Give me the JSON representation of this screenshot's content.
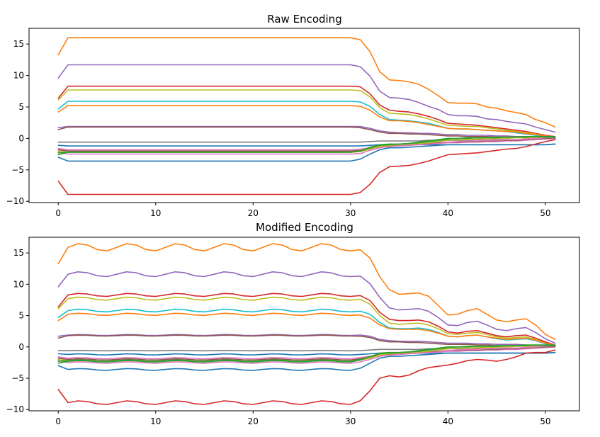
{
  "palette": [
    "#1f77b4",
    "#ff7f0e",
    "#2ca02c",
    "#d62728",
    "#9467bd",
    "#8c564b",
    "#e377c2",
    "#7f7f7f",
    "#bcbd22",
    "#17becf"
  ],
  "chart_data": [
    {
      "type": "line",
      "title": "Raw Encoding",
      "xlabel": "",
      "ylabel": "",
      "xlim": [
        -3,
        53.5
      ],
      "ylim": [
        -10.2,
        17.5
      ],
      "xticks": [
        0,
        10,
        20,
        30,
        40,
        50
      ],
      "yticks": [
        -10,
        -5,
        0,
        5,
        10,
        15
      ],
      "grid": false,
      "series": [
        {
          "color": "#ff7f0e",
          "start": 13.3,
          "plateau": 16.0,
          "transition": [
            15.7,
            13.8,
            10.6,
            9.3,
            9.2,
            9.0,
            8.6,
            7.8,
            6.8,
            5.7,
            5.6,
            5.6,
            5.5,
            5.0,
            4.8,
            4.4,
            4.1,
            3.8,
            3.0,
            2.5,
            1.8
          ]
        },
        {
          "color": "#9467bd",
          "start": 9.6,
          "plateau": 11.7,
          "transition": [
            11.4,
            9.9,
            7.5,
            6.5,
            6.4,
            6.2,
            5.7,
            5.1,
            4.6,
            3.8,
            3.6,
            3.6,
            3.5,
            3.1,
            3.0,
            2.7,
            2.5,
            2.3,
            1.8,
            1.4,
            1.0
          ]
        },
        {
          "color": "#d62728",
          "start": 6.4,
          "plateau": 8.3,
          "transition": [
            8.2,
            7.1,
            5.3,
            4.5,
            4.3,
            4.2,
            3.9,
            3.5,
            3.0,
            2.4,
            2.3,
            2.2,
            2.1,
            1.9,
            1.7,
            1.5,
            1.3,
            1.1,
            0.8,
            0.5,
            0.3
          ]
        },
        {
          "color": "#bcbd22",
          "start": 6.1,
          "plateau": 7.7,
          "transition": [
            7.6,
            6.6,
            4.9,
            4.0,
            3.9,
            3.8,
            3.5,
            3.1,
            2.6,
            2.1,
            2.0,
            1.9,
            1.9,
            1.7,
            1.5,
            1.3,
            1.1,
            0.9,
            0.7,
            0.4,
            0.2
          ]
        },
        {
          "color": "#17becf",
          "start": 4.7,
          "plateau": 5.9,
          "transition": [
            5.8,
            5.1,
            3.8,
            3.0,
            2.9,
            2.8,
            2.6,
            2.4,
            2.0,
            1.6,
            1.5,
            1.5,
            1.4,
            1.3,
            1.2,
            1.1,
            0.9,
            0.7,
            0.5,
            0.3,
            0.2
          ]
        },
        {
          "color": "#ff7f0e",
          "start": 4.2,
          "plateau": 5.2,
          "transition": [
            5.1,
            4.5,
            3.4,
            2.8,
            2.8,
            2.7,
            2.5,
            2.2,
            1.9,
            1.6,
            1.5,
            1.5,
            1.4,
            1.3,
            1.2,
            1.1,
            1.0,
            0.8,
            0.6,
            0.4,
            0.3
          ]
        },
        {
          "color": "#9467bd",
          "start": 1.7,
          "plateau": 1.9,
          "transition": [
            1.9,
            1.6,
            1.2,
            1.0,
            0.9,
            0.9,
            0.8,
            0.8,
            0.7,
            0.6,
            0.6,
            0.5,
            0.5,
            0.5,
            0.4,
            0.4,
            0.3,
            0.3,
            0.2,
            0.2,
            0.1
          ]
        },
        {
          "color": "#8c564b",
          "start": 1.4,
          "plateau": 1.8,
          "transition": [
            1.7,
            1.4,
            1.0,
            0.8,
            0.8,
            0.7,
            0.7,
            0.6,
            0.5,
            0.4,
            0.4,
            0.3,
            0.3,
            0.3,
            0.2,
            0.2,
            0.2,
            0.1,
            0.1,
            0.1,
            0.0
          ]
        },
        {
          "color": "#7f7f7f",
          "start": -0.6,
          "plateau": -0.6,
          "transition": [
            -0.6,
            -0.5,
            -0.4,
            -0.4,
            -0.4,
            -0.4,
            -0.4,
            -0.3,
            -0.3,
            -0.3,
            -0.3,
            -0.3,
            -0.2,
            -0.2,
            -0.2,
            -0.2,
            -0.2,
            -0.1,
            -0.1,
            -0.1,
            0.0
          ]
        },
        {
          "color": "#1f77b4",
          "start": -1.1,
          "plateau": -1.2,
          "transition": [
            -1.2,
            -1.1,
            -1.0,
            -1.0,
            -1.0,
            -1.0,
            -1.0,
            -1.0,
            -1.0,
            -1.0,
            -1.0,
            -1.0,
            -1.0,
            -1.0,
            -1.0,
            -1.0,
            -1.0,
            -1.0,
            -1.0,
            -1.0,
            -0.9
          ]
        },
        {
          "color": "#e377c2",
          "start": -1.6,
          "plateau": -1.8,
          "transition": [
            -1.7,
            -1.5,
            -1.3,
            -1.2,
            -1.2,
            -1.1,
            -1.0,
            -0.9,
            -0.8,
            -0.7,
            -0.7,
            -0.6,
            -0.6,
            -0.5,
            -0.5,
            -0.4,
            -0.4,
            -0.3,
            -0.2,
            -0.1,
            0.0
          ]
        },
        {
          "color": "#8c564b",
          "start": -1.8,
          "plateau": -2.0,
          "transition": [
            -1.9,
            -1.6,
            -1.3,
            -1.2,
            -1.1,
            -1.0,
            -0.9,
            -0.8,
            -0.7,
            -0.6,
            -0.6,
            -0.5,
            -0.5,
            -0.4,
            -0.4,
            -0.3,
            -0.3,
            -0.2,
            -0.1,
            0.0,
            0.1
          ]
        },
        {
          "color": "#bcbd22",
          "start": -2.0,
          "plateau": -2.2,
          "transition": [
            -2.1,
            -1.7,
            -1.3,
            -1.1,
            -1.0,
            -0.9,
            -0.8,
            -0.7,
            -0.5,
            -0.3,
            -0.2,
            -0.2,
            -0.1,
            -0.1,
            0.0,
            0.0,
            0.1,
            0.1,
            0.1,
            0.2,
            0.2
          ]
        },
        {
          "color": "#e377c2",
          "start": -2.2,
          "plateau": -2.5,
          "transition": [
            -2.4,
            -1.9,
            -1.5,
            -1.3,
            -1.2,
            -1.1,
            -1.0,
            -0.9,
            -0.8,
            -0.6,
            -0.5,
            -0.4,
            -0.4,
            -0.3,
            -0.3,
            -0.2,
            -0.2,
            -0.1,
            0.0,
            0.1,
            0.2
          ]
        },
        {
          "color": "#2ca02c",
          "start": -2.3,
          "plateau": -2.2,
          "transition": [
            -2.0,
            -1.5,
            -1.0,
            -0.9,
            -0.9,
            -0.8,
            -0.7,
            -0.5,
            -0.3,
            -0.1,
            0.0,
            0.0,
            0.1,
            0.1,
            0.1,
            0.2,
            0.2,
            0.2,
            0.3,
            0.3,
            0.3
          ]
        },
        {
          "color": "#2ca02c",
          "start": -2.6,
          "plateau": -2.2,
          "transition": [
            -2.0,
            -1.4,
            -1.1,
            -1.0,
            -0.9,
            -0.8,
            -0.6,
            -0.4,
            -0.2,
            0.0,
            0.0,
            0.1,
            0.1,
            0.1,
            0.2,
            0.2,
            0.2,
            0.3,
            0.3,
            0.2,
            0.2
          ]
        },
        {
          "color": "#1f77b4",
          "start": -3.0,
          "plateau": -3.6,
          "transition": [
            -3.3,
            -2.5,
            -1.8,
            -1.5,
            -1.5,
            -1.4,
            -1.3,
            -1.2,
            -1.1,
            -1.0,
            -1.0,
            -1.0,
            -1.0,
            -1.0,
            -1.0,
            -1.0,
            -1.0,
            -1.0,
            -1.0,
            -1.0,
            -0.9
          ]
        },
        {
          "color": "#d62728",
          "start": -6.8,
          "plateau": -8.9,
          "transition": [
            -8.6,
            -7.3,
            -5.4,
            -4.5,
            -4.4,
            -4.3,
            -4.0,
            -3.6,
            -3.1,
            -2.6,
            -2.5,
            -2.4,
            -2.3,
            -2.1,
            -1.9,
            -1.7,
            -1.6,
            -1.3,
            -0.9,
            -0.5,
            -0.2
          ]
        }
      ]
    },
    {
      "type": "line",
      "title": "Modified Encoding",
      "xlabel": "",
      "ylabel": "",
      "xlim": [
        -3,
        53.5
      ],
      "ylim": [
        -10.2,
        17.5
      ],
      "xticks": [
        0,
        10,
        20,
        30,
        40,
        50
      ],
      "yticks": [
        -10,
        -5,
        0,
        5,
        10,
        15
      ],
      "grid": false,
      "series": [
        {
          "color": "#ff7f0e",
          "start": 13.3,
          "plateau": 15.9,
          "wave": 0.6,
          "transition": [
            15.5,
            14.2,
            11.2,
            9.1,
            8.4,
            8.5,
            8.6,
            8.1,
            6.6,
            5.1,
            5.2,
            5.8,
            6.1,
            5.2,
            4.3,
            4.0,
            4.3,
            4.5,
            3.5,
            2.0,
            1.2
          ]
        },
        {
          "color": "#9467bd",
          "start": 9.6,
          "plateau": 11.6,
          "wave": 0.4,
          "transition": [
            11.3,
            10.1,
            7.9,
            6.2,
            5.9,
            6.0,
            6.1,
            5.7,
            4.7,
            3.5,
            3.4,
            3.9,
            4.1,
            3.5,
            2.8,
            2.6,
            2.9,
            3.1,
            2.3,
            1.3,
            0.6
          ]
        },
        {
          "color": "#d62728",
          "start": 6.4,
          "plateau": 8.3,
          "wave": 0.25,
          "transition": [
            8.2,
            7.4,
            5.5,
            4.4,
            4.2,
            4.2,
            4.3,
            4.0,
            3.3,
            2.4,
            2.2,
            2.5,
            2.6,
            2.2,
            1.8,
            1.6,
            1.8,
            1.9,
            1.4,
            0.8,
            0.3
          ]
        },
        {
          "color": "#bcbd22",
          "start": 6.1,
          "plateau": 7.7,
          "wave": 0.25,
          "transition": [
            7.6,
            6.8,
            5.0,
            3.8,
            3.6,
            3.7,
            3.8,
            3.5,
            2.9,
            2.1,
            2.0,
            2.2,
            2.3,
            2.0,
            1.6,
            1.4,
            1.5,
            1.6,
            1.2,
            0.6,
            0.2
          ]
        },
        {
          "color": "#17becf",
          "start": 4.7,
          "plateau": 5.8,
          "wave": 0.22,
          "transition": [
            5.7,
            5.2,
            3.9,
            3.0,
            2.9,
            2.9,
            3.0,
            2.8,
            2.3,
            1.7,
            1.6,
            1.8,
            1.9,
            1.6,
            1.3,
            1.1,
            1.2,
            1.3,
            1.0,
            0.5,
            0.2
          ]
        },
        {
          "color": "#ff7f0e",
          "start": 4.2,
          "plateau": 5.2,
          "wave": 0.18,
          "transition": [
            5.1,
            4.6,
            3.5,
            2.9,
            2.8,
            2.8,
            2.8,
            2.6,
            2.2,
            1.7,
            1.6,
            1.8,
            1.9,
            1.6,
            1.4,
            1.2,
            1.3,
            1.4,
            1.1,
            0.6,
            0.3
          ]
        },
        {
          "color": "#9467bd",
          "start": 1.7,
          "plateau": 1.9,
          "wave": 0.08,
          "transition": [
            1.9,
            1.7,
            1.2,
            1.0,
            0.9,
            0.9,
            0.9,
            0.8,
            0.7,
            0.6,
            0.6,
            0.6,
            0.5,
            0.5,
            0.4,
            0.4,
            0.4,
            0.3,
            0.2,
            0.2,
            0.1
          ]
        },
        {
          "color": "#8c564b",
          "start": 1.4,
          "plateau": 1.8,
          "wave": 0.08,
          "transition": [
            1.7,
            1.5,
            1.0,
            0.8,
            0.8,
            0.7,
            0.7,
            0.6,
            0.5,
            0.4,
            0.4,
            0.4,
            0.3,
            0.3,
            0.2,
            0.2,
            0.2,
            0.1,
            0.1,
            0.1,
            0.0
          ]
        },
        {
          "color": "#7f7f7f",
          "start": -0.6,
          "plateau": -0.6,
          "wave": 0.03,
          "transition": [
            -0.6,
            -0.5,
            -0.4,
            -0.4,
            -0.4,
            -0.4,
            -0.4,
            -0.3,
            -0.3,
            -0.3,
            -0.3,
            -0.3,
            -0.2,
            -0.2,
            -0.2,
            -0.2,
            -0.2,
            -0.1,
            -0.1,
            -0.1,
            0.0
          ]
        },
        {
          "color": "#1f77b4",
          "start": -1.1,
          "plateau": -1.2,
          "wave": 0.1,
          "transition": [
            -1.2,
            -1.1,
            -1.0,
            -1.0,
            -1.0,
            -1.0,
            -1.0,
            -1.0,
            -1.0,
            -1.0,
            -1.0,
            -1.0,
            -1.0,
            -1.0,
            -1.0,
            -1.0,
            -1.0,
            -1.0,
            -1.0,
            -1.0,
            -0.9
          ]
        },
        {
          "color": "#e377c2",
          "start": -1.6,
          "plateau": -1.8,
          "wave": 0.1,
          "transition": [
            -1.7,
            -1.5,
            -1.3,
            -1.2,
            -1.2,
            -1.1,
            -1.0,
            -0.9,
            -0.8,
            -0.7,
            -0.7,
            -0.6,
            -0.6,
            -0.5,
            -0.5,
            -0.4,
            -0.4,
            -0.3,
            -0.2,
            -0.1,
            0.0
          ]
        },
        {
          "color": "#8c564b",
          "start": -1.8,
          "plateau": -2.0,
          "wave": 0.1,
          "transition": [
            -1.9,
            -1.6,
            -1.3,
            -1.2,
            -1.1,
            -1.0,
            -0.9,
            -0.8,
            -0.7,
            -0.6,
            -0.6,
            -0.5,
            -0.5,
            -0.4,
            -0.4,
            -0.3,
            -0.3,
            -0.2,
            -0.1,
            0.0,
            0.1
          ]
        },
        {
          "color": "#bcbd22",
          "start": -2.0,
          "plateau": -2.2,
          "wave": 0.12,
          "transition": [
            -2.1,
            -1.8,
            -1.3,
            -1.1,
            -1.0,
            -0.9,
            -0.8,
            -0.7,
            -0.5,
            -0.3,
            -0.2,
            -0.2,
            -0.1,
            -0.1,
            0.0,
            0.0,
            0.1,
            0.1,
            0.1,
            0.2,
            0.2
          ]
        },
        {
          "color": "#e377c2",
          "start": -2.2,
          "plateau": -2.5,
          "wave": 0.12,
          "transition": [
            -2.4,
            -2.0,
            -1.5,
            -1.3,
            -1.2,
            -1.1,
            -1.0,
            -0.9,
            -0.8,
            -0.6,
            -0.5,
            -0.4,
            -0.4,
            -0.3,
            -0.3,
            -0.2,
            -0.2,
            -0.1,
            0.0,
            0.1,
            0.2
          ]
        },
        {
          "color": "#2ca02c",
          "start": -2.3,
          "plateau": -2.2,
          "wave": 0.12,
          "transition": [
            -2.0,
            -1.6,
            -1.0,
            -0.9,
            -0.9,
            -0.8,
            -0.7,
            -0.5,
            -0.3,
            -0.1,
            0.0,
            0.0,
            0.1,
            0.1,
            0.1,
            0.2,
            0.2,
            0.2,
            0.3,
            0.3,
            0.3
          ]
        },
        {
          "color": "#2ca02c",
          "start": -2.6,
          "plateau": -2.3,
          "wave": 0.12,
          "transition": [
            -2.1,
            -1.5,
            -1.1,
            -1.0,
            -0.9,
            -0.8,
            -0.6,
            -0.4,
            -0.2,
            0.0,
            0.0,
            0.1,
            0.1,
            0.1,
            0.2,
            0.2,
            0.2,
            0.3,
            0.3,
            0.2,
            0.2
          ]
        },
        {
          "color": "#1f77b4",
          "start": -3.0,
          "plateau": -3.6,
          "wave": 0.15,
          "transition": [
            -3.4,
            -2.6,
            -1.8,
            -1.5,
            -1.5,
            -1.4,
            -1.3,
            -1.2,
            -1.1,
            -1.0,
            -1.0,
            -1.0,
            -1.0,
            -1.0,
            -1.0,
            -1.0,
            -1.0,
            -1.0,
            -1.0,
            -1.0,
            -0.9
          ]
        },
        {
          "color": "#d62728",
          "start": -6.8,
          "plateau": -8.9,
          "wave": 0.3,
          "transition": [
            -8.6,
            -7.0,
            -5.0,
            -4.6,
            -4.8,
            -4.5,
            -3.8,
            -3.3,
            -3.1,
            -2.9,
            -2.6,
            -2.2,
            -2.0,
            -2.1,
            -2.3,
            -2.0,
            -1.6,
            -1.0,
            -0.9,
            -0.9,
            -0.5
          ]
        }
      ]
    }
  ]
}
